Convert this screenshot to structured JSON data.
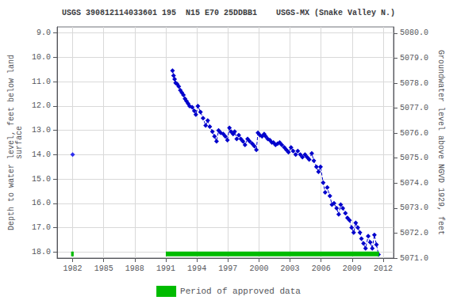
{
  "chart_data": {
    "type": "line",
    "title": "USGS 390812114033601 195  N15 E70 25DDBB1    USGS-MX (Snake Valley N.)",
    "ylabel": "Depth to water level, feet below land\nsurface",
    "y2label": "Groundwater level above NGVD 1929, feet",
    "xlim": [
      1980.5,
      2013.0
    ],
    "ylim": [
      18.25,
      8.75
    ],
    "y2lim": [
      5071.0,
      5080.25
    ],
    "xticks": [
      1982,
      1985,
      1988,
      1991,
      1994,
      1997,
      2000,
      2003,
      2006,
      2009,
      2012
    ],
    "yticks": [
      {
        "value": 9.0,
        "label": "9.0"
      },
      {
        "value": 10.0,
        "label": "10.0"
      },
      {
        "value": 11.0,
        "label": "11.0"
      },
      {
        "value": 12.0,
        "label": "12.0"
      },
      {
        "value": 13.0,
        "label": "13.0"
      },
      {
        "value": 14.0,
        "label": "14.0"
      },
      {
        "value": 15.0,
        "label": "15.0"
      },
      {
        "value": 16.0,
        "label": "16.0"
      },
      {
        "value": 17.0,
        "label": "17.0"
      },
      {
        "value": 18.0,
        "label": "18.0"
      }
    ],
    "y2ticks": [
      {
        "value": 5071.0,
        "label": "5071.0"
      },
      {
        "value": 5072.0,
        "label": "5072.0"
      },
      {
        "value": 5073.0,
        "label": "5073.0"
      },
      {
        "value": 5074.0,
        "label": "5074.0"
      },
      {
        "value": 5075.0,
        "label": "5075.0"
      },
      {
        "value": 5076.0,
        "label": "5076.0"
      },
      {
        "value": 5077.0,
        "label": "5077.0"
      },
      {
        "value": 5078.0,
        "label": "5078.0"
      },
      {
        "value": 5079.0,
        "label": "5079.0"
      },
      {
        "value": 5080.0,
        "label": "5080.0"
      }
    ],
    "grid": true,
    "legend": "bottom",
    "series": [
      {
        "type": "line",
        "color": "#0000CC",
        "marker": "diamond",
        "line_style": "dashed",
        "x": [
          1991.65,
          1991.75,
          1991.85,
          1991.95,
          1992.1,
          1992.25,
          1992.4,
          1992.55,
          1992.7,
          1992.85,
          1993.0,
          1993.15,
          1993.3,
          1993.55,
          1993.75,
          1993.9,
          1994.1,
          1994.35,
          1994.6,
          1994.85,
          1995.05,
          1995.25,
          1995.5,
          1995.7,
          1995.9,
          1996.1,
          1996.3,
          1996.55,
          1996.75,
          1996.95,
          1997.15,
          1997.3,
          1997.5,
          1997.65,
          1997.85,
          1998.05,
          1998.25,
          1998.45,
          1998.65,
          1998.9,
          1999.1,
          1999.35,
          1999.55,
          1999.75,
          1999.9,
          2000.1,
          2000.3,
          2000.5,
          2000.65,
          2000.85,
          2001.05,
          2001.25,
          2001.4,
          2001.6,
          2001.8,
          2002.0,
          2002.2,
          2002.45,
          2002.65,
          2002.85,
          2003.1,
          2003.3,
          2003.55,
          2003.75,
          2004.0,
          2004.2,
          2004.45,
          2004.65,
          2004.85,
          2005.1,
          2005.3,
          2005.55,
          2005.75,
          2005.95,
          2006.2,
          2006.4,
          2006.6,
          2006.85,
          2007.05,
          2007.25,
          2007.5,
          2007.7,
          2007.9,
          2008.1,
          2008.35,
          2008.55,
          2008.75,
          2008.95,
          2009.15,
          2009.35,
          2009.55,
          2009.75,
          2009.9,
          2010.1,
          2010.3,
          2010.55,
          2010.75,
          2010.95,
          2011.15,
          2011.35,
          2011.55
        ],
        "values": [
          10.55,
          10.75,
          10.9,
          11.05,
          11.1,
          11.2,
          11.35,
          11.45,
          11.55,
          11.7,
          11.8,
          11.9,
          12.0,
          12.05,
          12.2,
          12.35,
          12.0,
          12.25,
          12.5,
          12.8,
          12.6,
          12.85,
          13.05,
          13.25,
          13.45,
          13.0,
          13.1,
          13.15,
          13.25,
          13.4,
          12.9,
          13.05,
          13.15,
          13.05,
          13.35,
          13.2,
          13.35,
          13.45,
          13.6,
          13.35,
          13.45,
          13.55,
          13.65,
          13.8,
          13.1,
          13.2,
          13.25,
          13.15,
          13.25,
          13.35,
          13.4,
          13.5,
          13.5,
          13.6,
          13.55,
          13.5,
          13.6,
          13.7,
          13.8,
          13.9,
          13.7,
          13.85,
          14.0,
          13.85,
          14.0,
          14.1,
          14.0,
          14.1,
          14.2,
          13.95,
          14.25,
          14.5,
          14.7,
          14.5,
          15.15,
          15.55,
          15.35,
          15.7,
          16.05,
          16.0,
          16.2,
          16.45,
          16.05,
          16.2,
          16.4,
          16.6,
          16.7,
          17.0,
          17.2,
          16.8,
          17.0,
          17.2,
          17.45,
          17.65,
          17.85,
          17.35,
          17.6,
          17.85,
          17.3,
          17.7,
          18.1
        ]
      },
      {
        "type": "scatter",
        "color": "#0000EE",
        "marker": "diamond",
        "x": [
          1982.0
        ],
        "values": [
          14.0
        ]
      },
      {
        "type": "range",
        "name": "Period of approved data",
        "color": "#00BB00",
        "start": [
          1981.85,
          1991.0
        ],
        "end": [
          1982.1,
          2011.6
        ],
        "y": 18.08
      }
    ]
  }
}
